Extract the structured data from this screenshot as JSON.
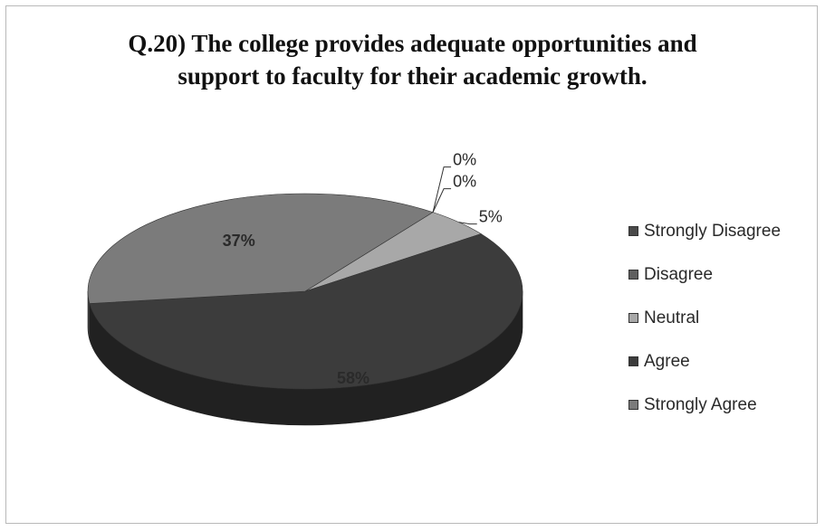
{
  "chart_data": {
    "type": "pie",
    "title_lines": [
      "Q.20) The college provides adequate opportunities and",
      "support to faculty for their academic growth."
    ],
    "categories": [
      "Strongly Disagree",
      "Disagree",
      "Neutral",
      "Agree",
      "Strongly Agree"
    ],
    "values": [
      0,
      0,
      5,
      58,
      37
    ],
    "labels": [
      "0%",
      "0%",
      "5%",
      "58%",
      "37%"
    ],
    "colors": [
      "#4a4a4a",
      "#5f5f5f",
      "#a8a8a8",
      "#3c3c3c",
      "#7b7b7b"
    ],
    "legend_position": "right",
    "style": "3d"
  }
}
